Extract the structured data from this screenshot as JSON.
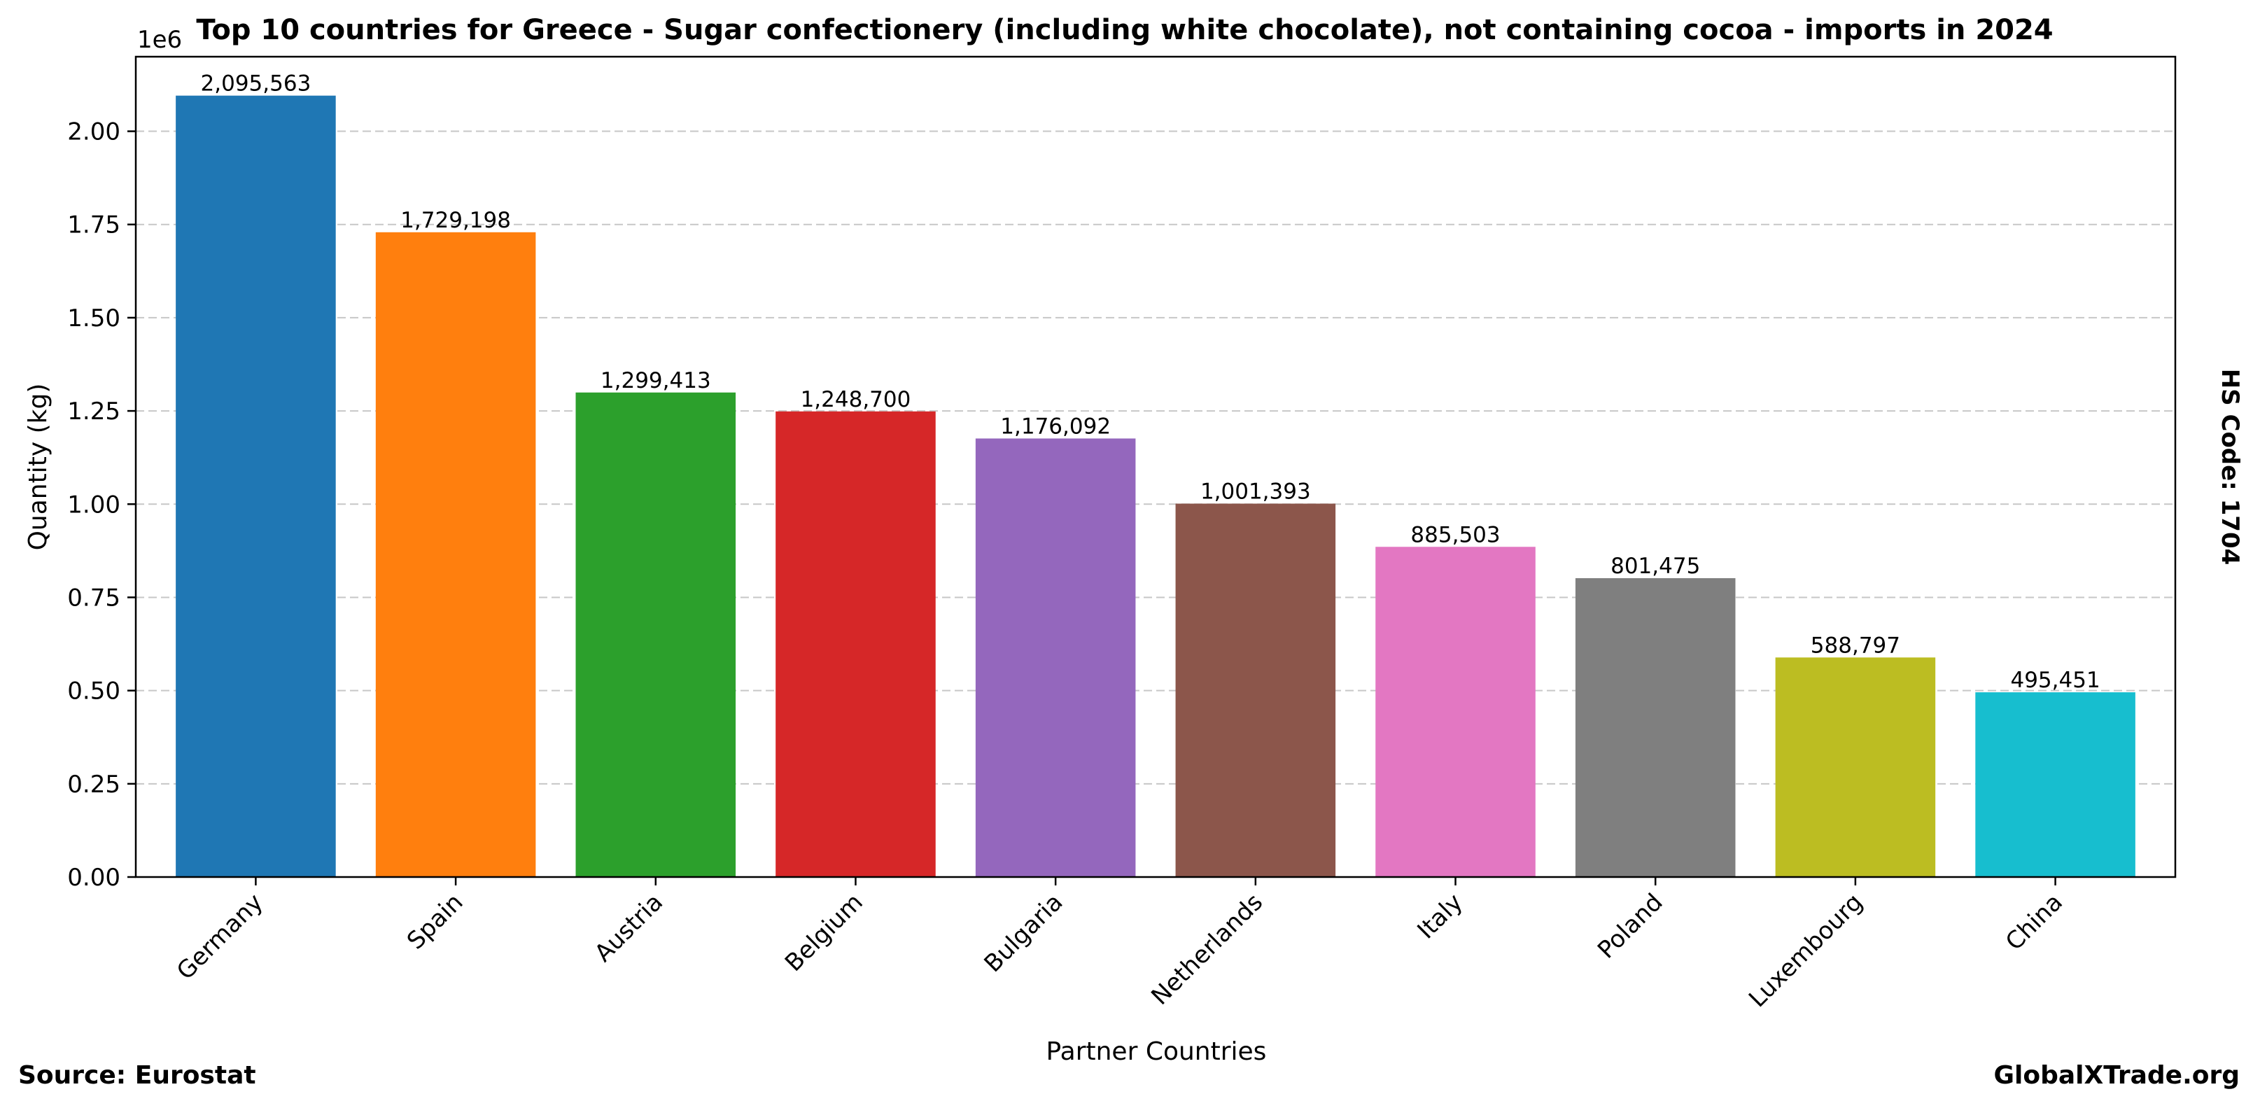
{
  "chart_data": {
    "type": "bar",
    "title": "Top 10 countries for Greece - Sugar confectionery (including white chocolate), not containing cocoa - imports in 2024",
    "xlabel": "Partner Countries",
    "ylabel": "Quantity (kg)",
    "y_scale_label": "1e6",
    "ylim": [
      0,
      2200000
    ],
    "yticks": [
      0,
      250000,
      500000,
      750000,
      1000000,
      1250000,
      1500000,
      1750000,
      2000000
    ],
    "ytick_labels": [
      "0.00",
      "0.25",
      "0.50",
      "0.75",
      "1.00",
      "1.25",
      "1.50",
      "1.75",
      "2.00"
    ],
    "grid": "horizontal-dashed",
    "categories": [
      "Germany",
      "Spain",
      "Austria",
      "Belgium",
      "Bulgaria",
      "Netherlands",
      "Italy",
      "Poland",
      "Luxembourg",
      "China"
    ],
    "values": [
      2095563,
      1729198,
      1299413,
      1248700,
      1176092,
      1001393,
      885503,
      801475,
      588797,
      495451
    ],
    "value_labels": [
      "2,095,563",
      "1,729,198",
      "1,299,413",
      "1,248,700",
      "1,176,092",
      "1,001,393",
      "885,503",
      "801,475",
      "588,797",
      "495,451"
    ],
    "colors": [
      "#1f77b4",
      "#ff7f0e",
      "#2ca02c",
      "#d62728",
      "#9467bd",
      "#8c564b",
      "#e377c2",
      "#7f7f7f",
      "#bcbd22",
      "#17becf"
    ]
  },
  "side_label": "HS Code: 1704",
  "footer": {
    "source": "Source: Eurostat",
    "brand": "GlobalXTrade.org"
  }
}
